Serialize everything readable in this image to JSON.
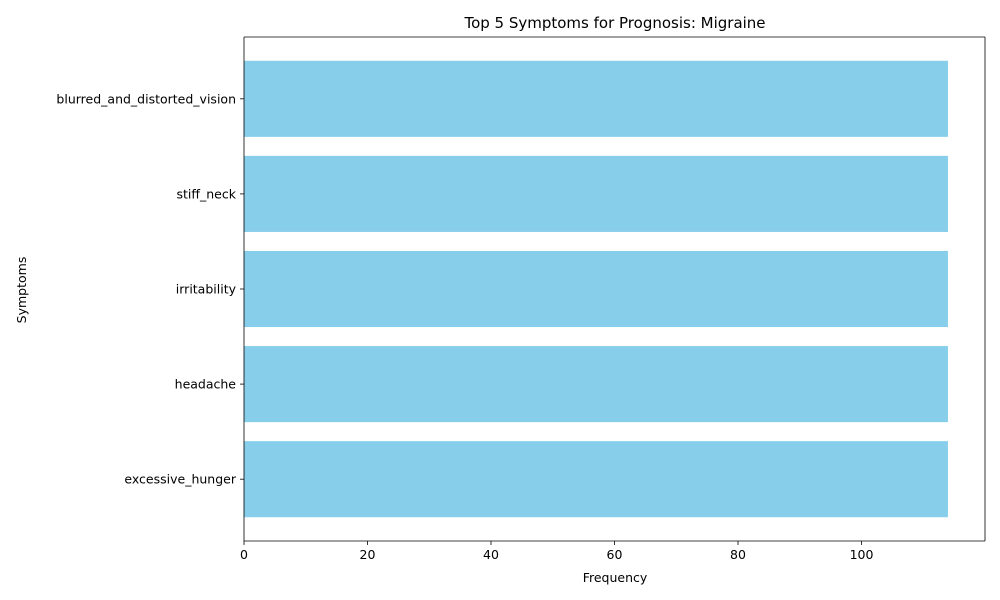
{
  "chart_data": {
    "type": "bar",
    "orientation": "horizontal",
    "title": "Top 5 Symptoms for Prognosis: Migraine",
    "xlabel": "Frequency",
    "ylabel": "Symptoms",
    "categories": [
      "excessive_hunger",
      "headache",
      "irritability",
      "stiff_neck",
      "blurred_and_distorted_vision"
    ],
    "values": [
      114,
      114,
      114,
      114,
      114
    ],
    "xlim": [
      0,
      120
    ],
    "xticks": [
      0,
      20,
      40,
      60,
      80,
      100
    ],
    "bar_color": "#87CEEB",
    "grid": false,
    "legend": "none"
  }
}
